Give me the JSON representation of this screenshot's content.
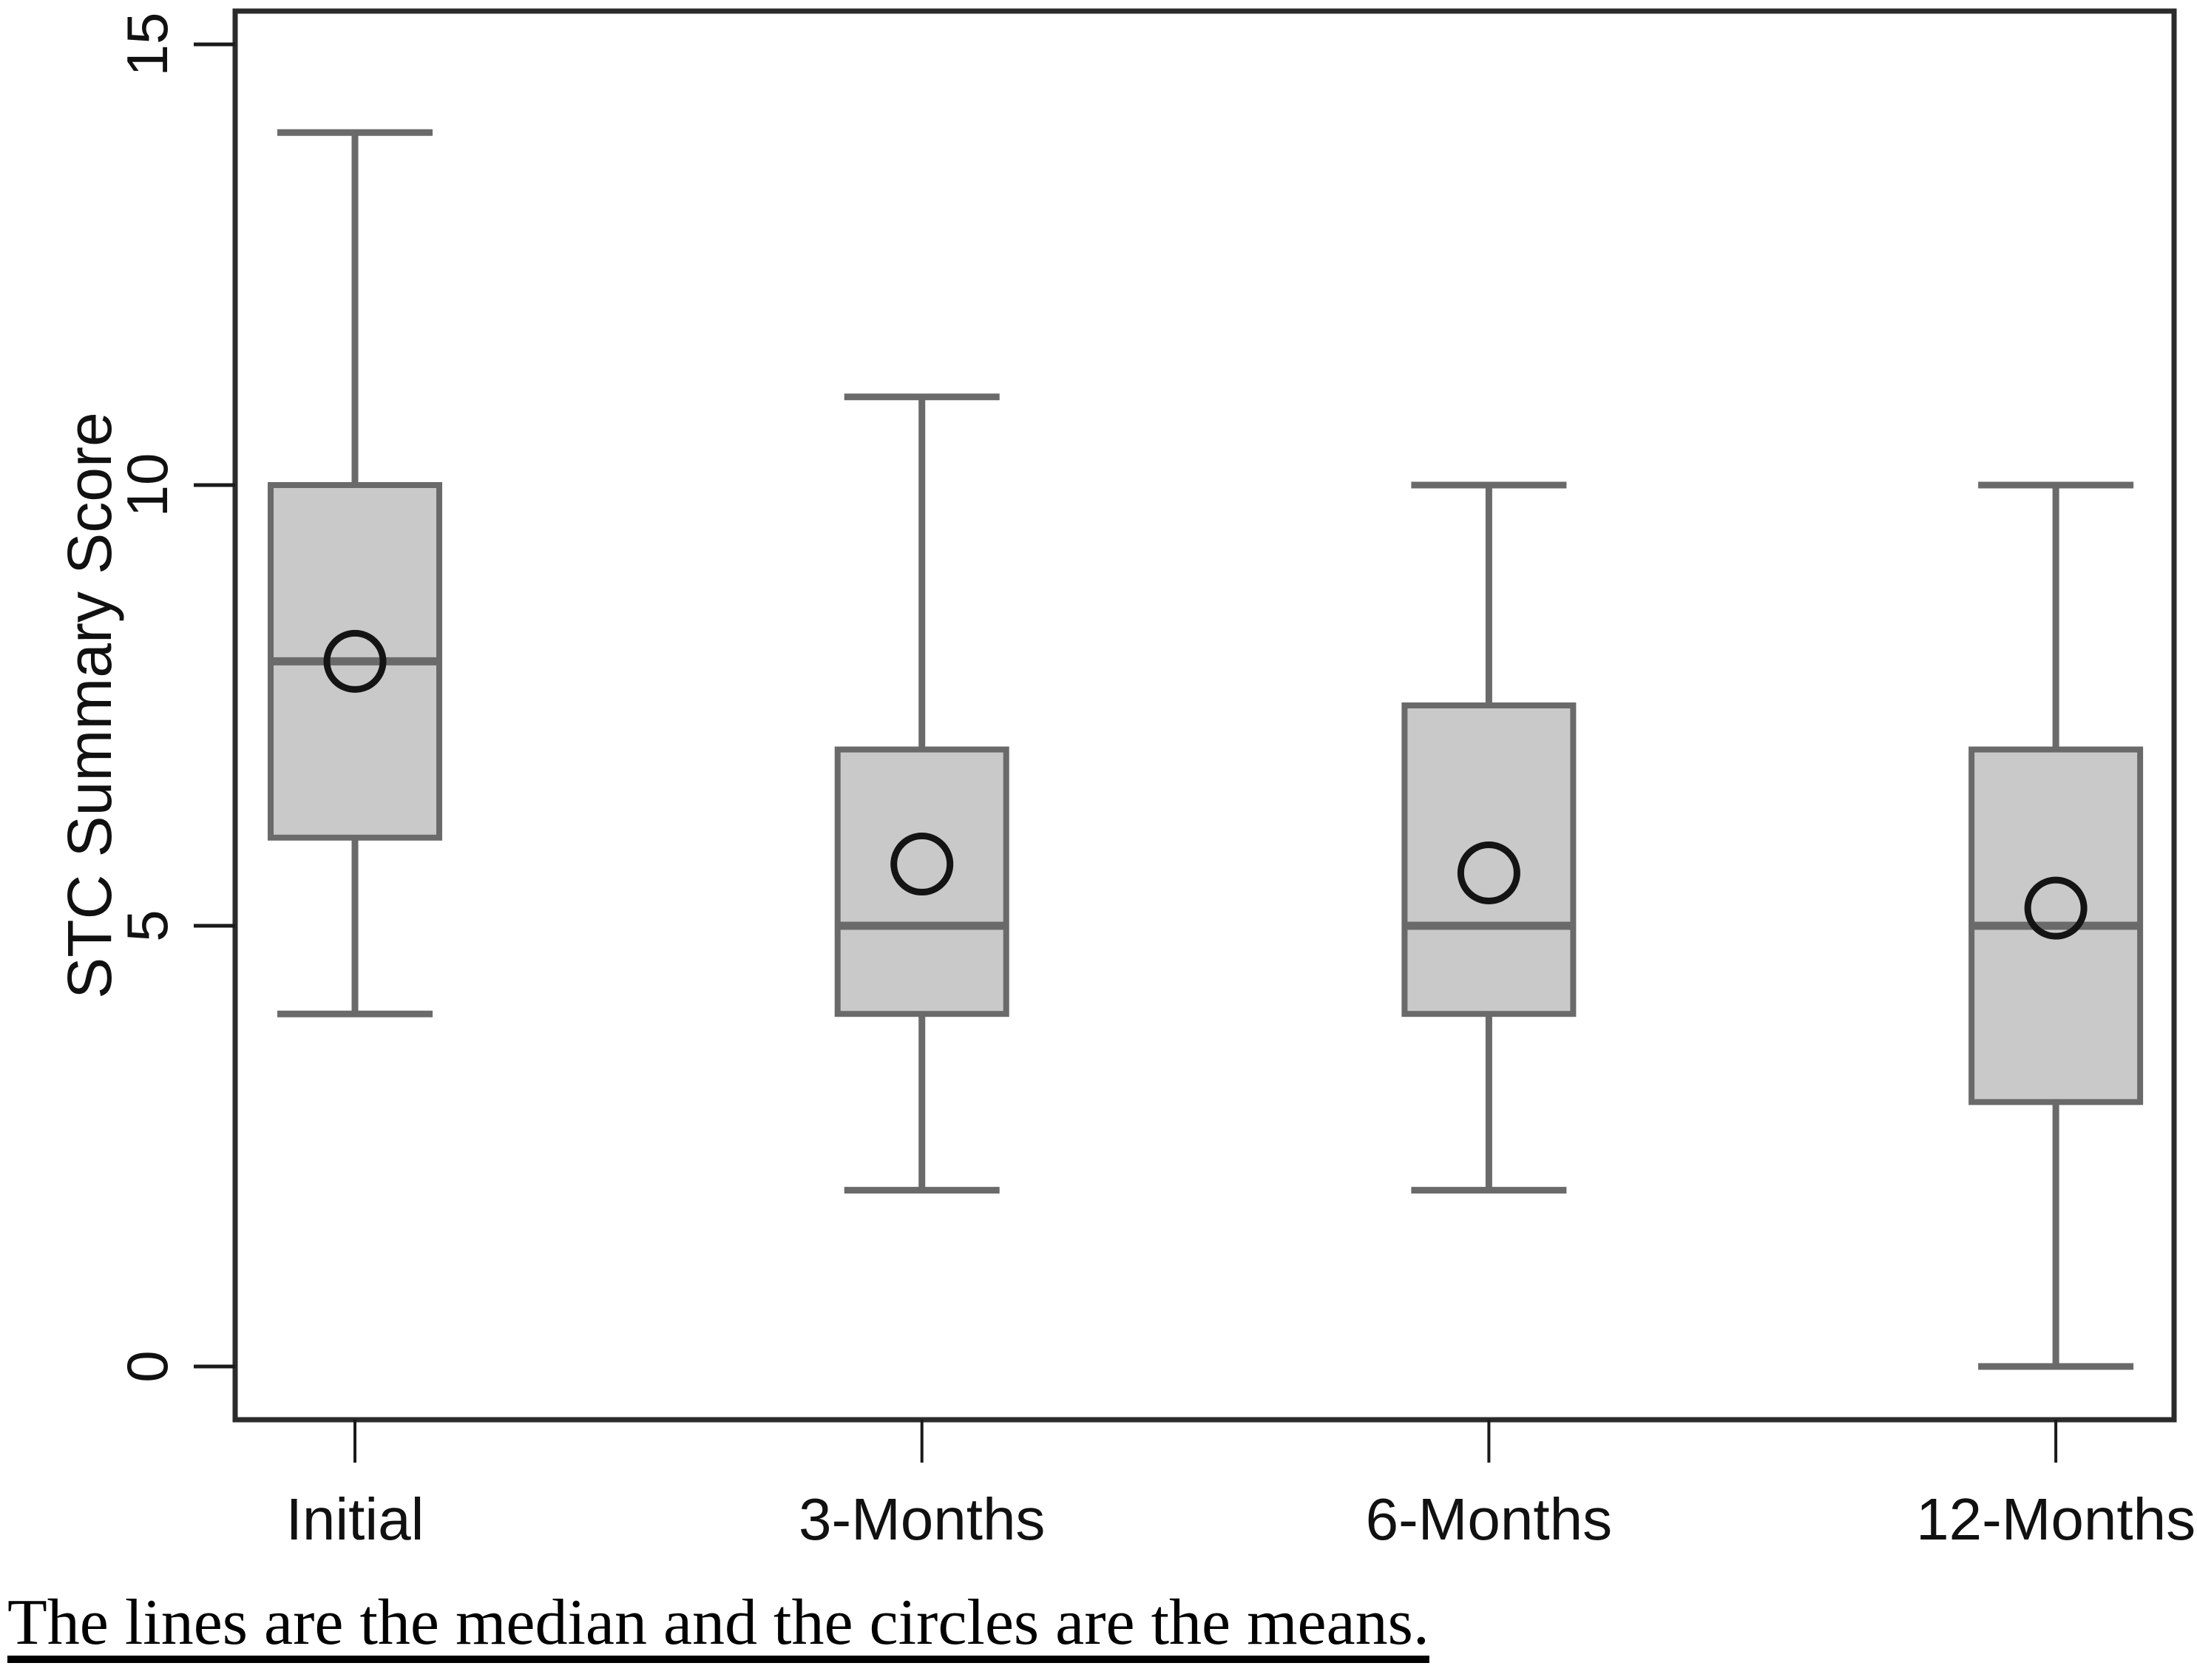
{
  "figure": {
    "caption": "The lines are the median and the circles are the means."
  },
  "chart_data": {
    "type": "boxplot",
    "title": "",
    "xlabel": "",
    "ylabel": "STC Summary Score",
    "ylim": [
      0,
      15
    ],
    "yticks": [
      0,
      5,
      10,
      15
    ],
    "categories": [
      "Initial",
      "3-Months",
      "6-Months",
      "12-Months"
    ],
    "series": [
      {
        "name": "Initial",
        "whisker_low": 4,
        "q1": 6,
        "median": 8,
        "mean": 8.0,
        "q3": 10,
        "whisker_high": 14
      },
      {
        "name": "3-Months",
        "whisker_low": 2,
        "q1": 4,
        "median": 5,
        "mean": 5.7,
        "q3": 7,
        "whisker_high": 11
      },
      {
        "name": "6-Months",
        "whisker_low": 2,
        "q1": 4,
        "median": 5,
        "mean": 5.6,
        "q3": 7.5,
        "whisker_high": 10
      },
      {
        "name": "12-Months",
        "whisker_low": 0,
        "q1": 3,
        "median": 5,
        "mean": 5.2,
        "q3": 7,
        "whisker_high": 10
      }
    ],
    "mean_marker": "open-circle",
    "legend_position": "none",
    "grid": false,
    "colors": {
      "box_fill": "#c9c9c9",
      "box_border": "#6a6a6a",
      "whisker": "#6a6a6a",
      "median_line": "#6a6a6a",
      "mean_marker": "#141414",
      "frame": "#2b2b2b",
      "tick": "#1a1a1a",
      "text": "#111111"
    }
  }
}
